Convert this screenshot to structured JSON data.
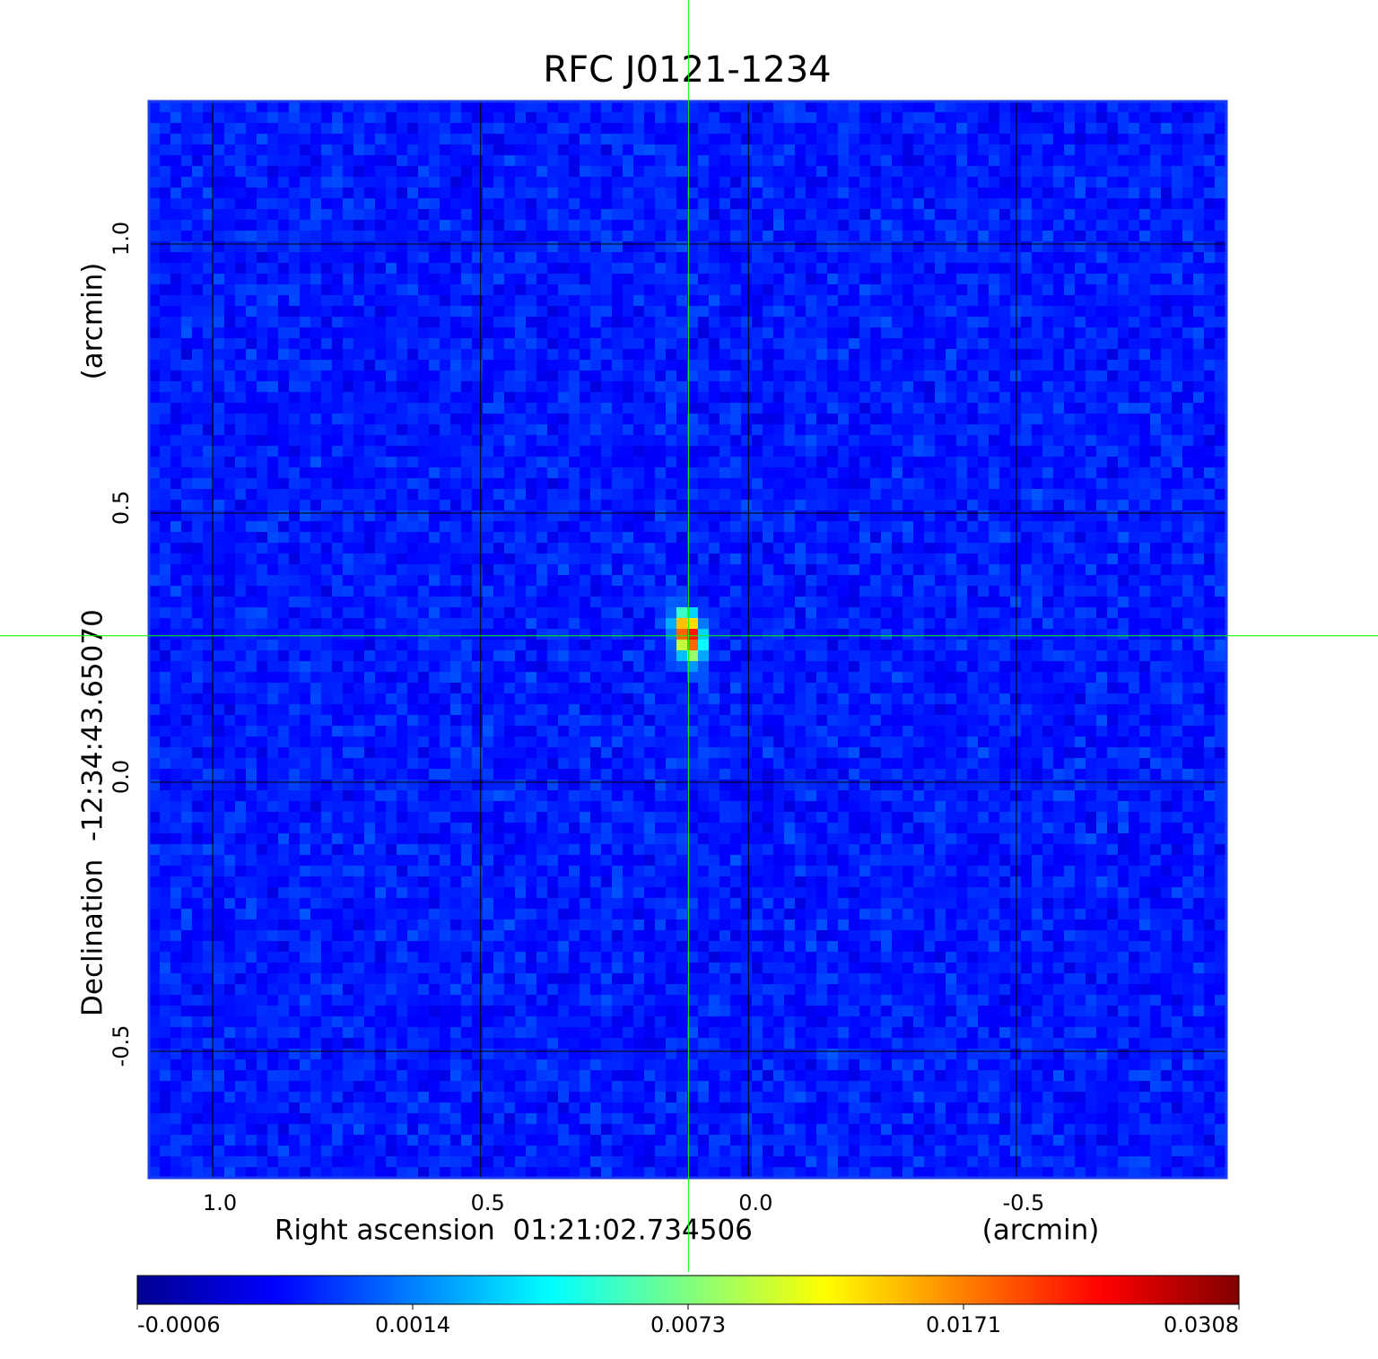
{
  "chart_data": {
    "type": "image",
    "title": "RFC J0121-1234",
    "title_color": "#1414d2",
    "x_label": "Right ascension  01:21:02.734506",
    "x_unit": "(arcmin)",
    "y_label": "Declination  -12:34:43.65070",
    "y_unit": "(arcmin)",
    "xlim": [
      1.119,
      -0.892
    ],
    "ylim": [
      -0.735,
      1.265
    ],
    "xticks": [
      {
        "value": 1,
        "label": "1.0"
      },
      0.5,
      {
        "value": 0,
        "label": "0.0"
      },
      -0.5
    ],
    "yticks": [
      {
        "value": 1,
        "label": "1.0"
      },
      0.5,
      {
        "value": 0,
        "label": "0.0"
      },
      -0.5
    ],
    "grid": true,
    "colormap": "jet",
    "colorbar_ticks": [
      -0.0006,
      0.0014,
      0.0073,
      0.0171,
      0.0308
    ],
    "crosshair": {
      "x": 0.112,
      "y": 0.272,
      "color": "#00ff00"
    }
  }
}
